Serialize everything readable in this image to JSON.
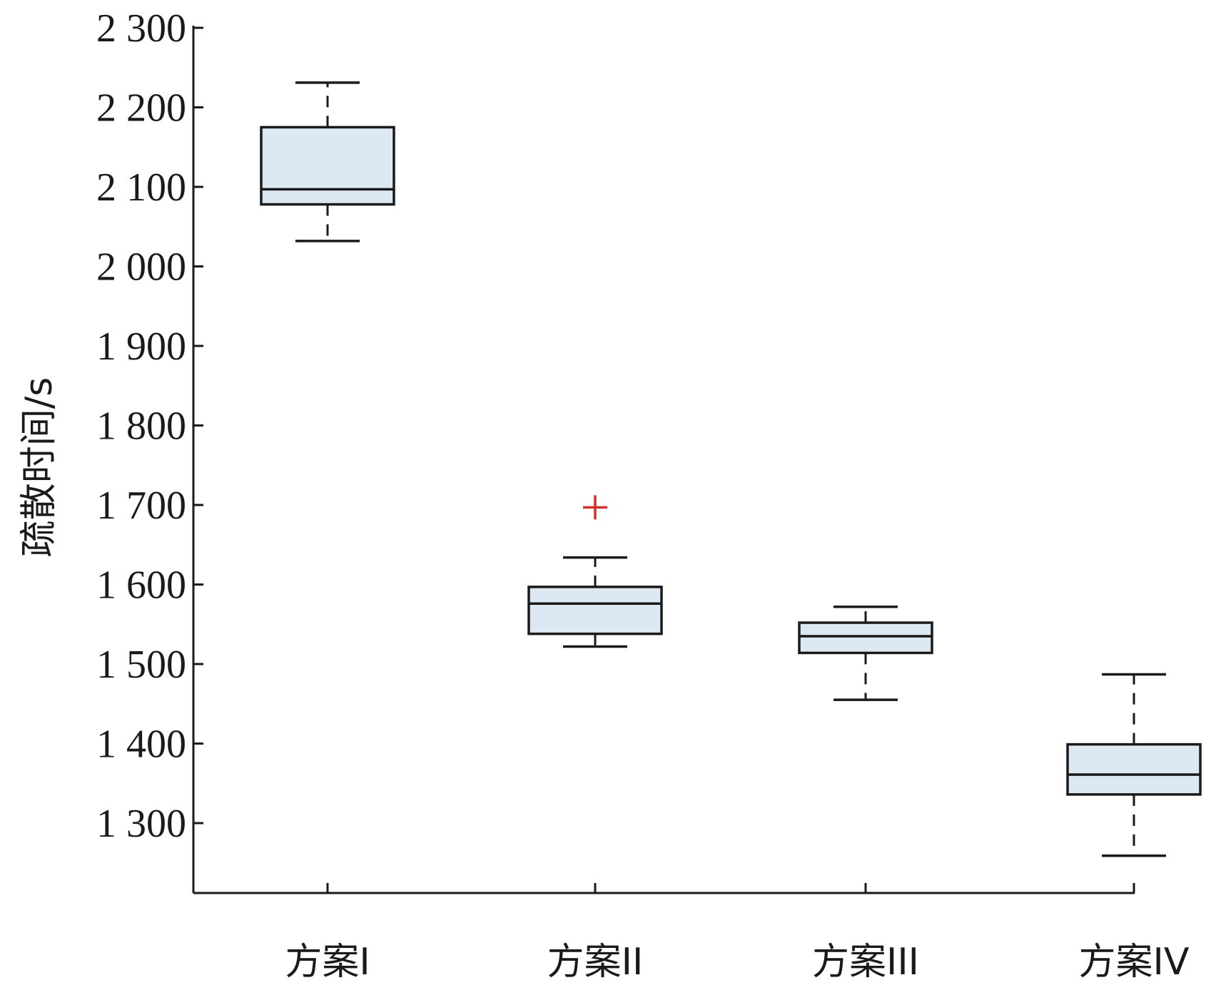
{
  "chart_data": {
    "type": "box",
    "title": "",
    "xlabel": "",
    "ylabel": "疏散时间/s",
    "ylim": [
      1210,
      2300
    ],
    "yticks": [
      1300,
      1400,
      1500,
      1600,
      1700,
      1800,
      1900,
      2000,
      2100,
      2200,
      2300
    ],
    "ytick_labels": [
      "1 300",
      "1 400",
      "1 500",
      "1 600",
      "1 700",
      "1 800",
      "1 900",
      "2 000",
      "2 100",
      "2 200",
      "2 300"
    ],
    "grid": false,
    "categories": [
      "方案I",
      "方案II",
      "方案III",
      "方案IV"
    ],
    "boxes": [
      {
        "category": "方案I",
        "whisker_low": 2032,
        "q1": 2078,
        "median": 2097,
        "q3": 2175,
        "whisker_high": 2231,
        "outliers": []
      },
      {
        "category": "方案II",
        "whisker_low": 1522,
        "q1": 1538,
        "median": 1576,
        "q3": 1597,
        "whisker_high": 1634,
        "outliers": [
          1697
        ]
      },
      {
        "category": "方案III",
        "whisker_low": 1455,
        "q1": 1514,
        "median": 1535,
        "q3": 1552,
        "whisker_high": 1572,
        "outliers": []
      },
      {
        "category": "方案IV",
        "whisker_low": 1259,
        "q1": 1336,
        "median": 1361,
        "q3": 1399,
        "whisker_high": 1487,
        "outliers": []
      }
    ],
    "colors": {
      "box_fill": "#dde9f2",
      "box_edge": "#1a1a1a",
      "outlier": "#d2302a",
      "axis": "#1a1a1a"
    }
  }
}
